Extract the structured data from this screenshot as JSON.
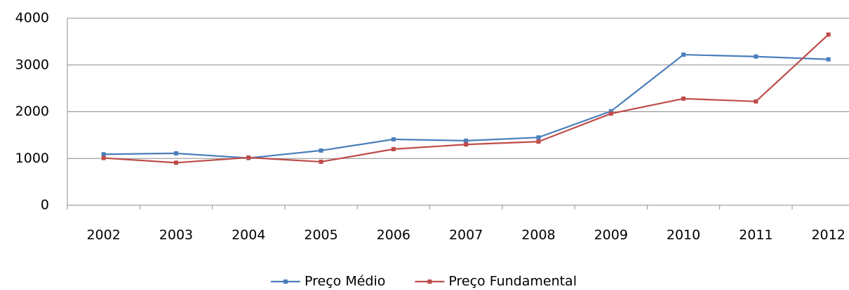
{
  "chart_data": {
    "type": "line",
    "categories": [
      "2002",
      "2003",
      "2004",
      "2005",
      "2006",
      "2007",
      "2008",
      "2009",
      "2010",
      "2011",
      "2012"
    ],
    "series": [
      {
        "name": "Preço Médio",
        "color": "#4a7ebb",
        "values": [
          1090,
          1110,
          1010,
          1170,
          1410,
          1380,
          1450,
          2010,
          3220,
          3180,
          3120
        ]
      },
      {
        "name": "Preço Fundamental",
        "color": "#be4b48",
        "values": [
          1010,
          910,
          1020,
          930,
          1200,
          1300,
          1360,
          1960,
          2280,
          2220,
          3650
        ]
      }
    ],
    "ylim": [
      0,
      4000
    ],
    "yticks": [
      0,
      1000,
      2000,
      3000,
      4000
    ],
    "grid": true,
    "legend": "bottom"
  }
}
